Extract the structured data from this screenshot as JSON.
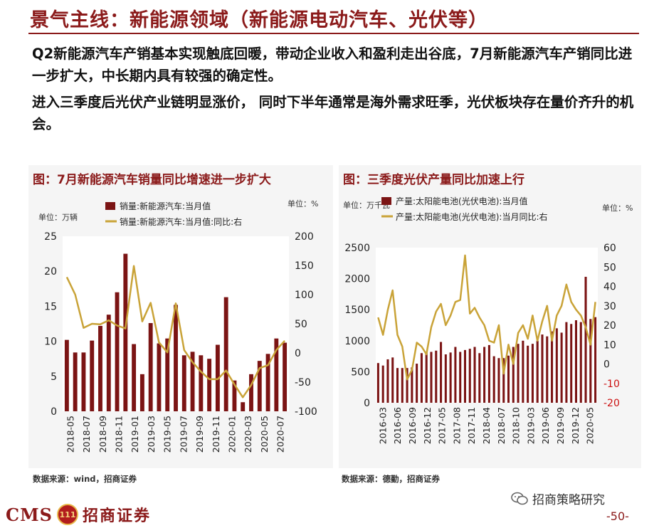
{
  "header": {
    "title": "景气主线：新能源领域（新能源电动汽车、光伏等）"
  },
  "paragraphs": [
    "Q2新能源汽车产销基本实现触底回暖，带动企业收入和盈利走出谷底，7月新能源汽车产销同比进一步扩大，中长期内具有较强的确定性。",
    "进入三季度后光伏产业链明显涨价， 同时下半年通常是海外需求旺季，光伏板块存在量价齐升的机会。"
  ],
  "footer": {
    "logo_text": "CMS",
    "emblem_text": "111",
    "brand": "招商证券",
    "wechat_account": "招商策略研究",
    "page": "-50-"
  },
  "colors": {
    "bar": "#7b1414",
    "line": "#c9a338",
    "right_axis_red": "#cc1111",
    "title_red": "#8b1a1a"
  },
  "chart_data": [
    {
      "type": "bar+line",
      "title": "图：7月新能源汽车销量同比增速进一步扩大",
      "source": "数据来源：wind，招商证券",
      "unit_left": "单位：万辆",
      "unit_right": "单位：%",
      "legend": [
        "销量:新能源汽车:当月值",
        "销量:新能源汽车:当月值:同比:右"
      ],
      "ylim_left": [
        0,
        25
      ],
      "yticks_left": [
        "0",
        "5",
        "10",
        "15",
        "20",
        "25"
      ],
      "ylim_right": [
        -100,
        200
      ],
      "yticks_right": [
        "-100",
        "-50",
        "0",
        "50",
        "100",
        "150",
        "200"
      ],
      "x_labels": [
        "2018-05",
        "2018-07",
        "2018-09",
        "2018-11",
        "2019-01",
        "2019-03",
        "2019-05",
        "2019-07",
        "2019-09",
        "2019-11",
        "2020-01",
        "2020-03",
        "2020-05",
        "2020-07"
      ],
      "categories": [
        "2018-05",
        "2018-06",
        "2018-07",
        "2018-08",
        "2018-09",
        "2018-10",
        "2018-11",
        "2018-12",
        "2019-01",
        "2019-02",
        "2019-03",
        "2019-04",
        "2019-05",
        "2019-06",
        "2019-07",
        "2019-08",
        "2019-09",
        "2019-10",
        "2019-11",
        "2019-12",
        "2020-01",
        "2020-02",
        "2020-03",
        "2020-04",
        "2020-05",
        "2020-06",
        "2020-07"
      ],
      "bars": [
        10.2,
        8.4,
        8.4,
        10.1,
        12.2,
        13.8,
        17.0,
        22.5,
        9.6,
        5.3,
        12.6,
        9.7,
        10.4,
        15.2,
        8.0,
        8.5,
        8.0,
        7.5,
        9.5,
        16.3,
        4.4,
        1.3,
        5.3,
        7.2,
        8.2,
        10.4,
        9.8
      ],
      "line": [
        130,
        100,
        43,
        50,
        49,
        56,
        47,
        42,
        149,
        54,
        86,
        18,
        1,
        85,
        5,
        -16,
        -32,
        -45,
        -45,
        -30,
        -54,
        -76,
        -55,
        -26,
        -21,
        5,
        21
      ]
    },
    {
      "type": "bar+line",
      "title": "图：三季度光伏产量同比加速上行",
      "source": "数据来源：德勤，招商证券",
      "unit_left": "单位：万千瓦",
      "unit_right": "单位：%",
      "legend": [
        "产量:太阳能电池(光伏电池):当月值",
        "产量:太阳能电池(光伏电池):当月同比:右"
      ],
      "ylim_left": [
        0,
        2500
      ],
      "yticks_left": [
        "0",
        "500",
        "1000",
        "1500",
        "2000",
        "2500"
      ],
      "ylim_right": [
        -20,
        60
      ],
      "yticks_right": [
        "-20",
        "-10",
        "0",
        "10",
        "20",
        "30",
        "40",
        "50",
        "60"
      ],
      "x_labels": [
        "2016-03",
        "2016-06",
        "2016-09",
        "2016-12",
        "2017-05",
        "2017-08",
        "2017-11",
        "2018-04",
        "2018-07",
        "2018-10",
        "2019-03",
        "2019-06",
        "2019-09",
        "2019-12",
        "2020-05"
      ],
      "bars": [
        640,
        600,
        700,
        730,
        560,
        560,
        560,
        570,
        630,
        800,
        820,
        820,
        840,
        980,
        780,
        810,
        900,
        820,
        850,
        870,
        900,
        800,
        900,
        930,
        750,
        720,
        720,
        760,
        900,
        950,
        1000,
        920,
        950,
        1000,
        1100,
        1070,
        1150,
        1200,
        1130,
        1300,
        1270,
        1330,
        1300,
        2030,
        1350,
        1380
      ],
      "line": [
        24,
        15,
        28,
        38,
        15,
        9,
        -8,
        -3,
        11,
        9,
        5,
        19,
        27,
        31,
        20,
        25,
        32,
        33,
        56,
        26,
        29,
        24,
        20,
        12,
        11,
        20,
        -5,
        10,
        0,
        16,
        20,
        13,
        25,
        12,
        22,
        30,
        12,
        25,
        30,
        41,
        32,
        28,
        25,
        19,
        10,
        32
      ]
    }
  ]
}
